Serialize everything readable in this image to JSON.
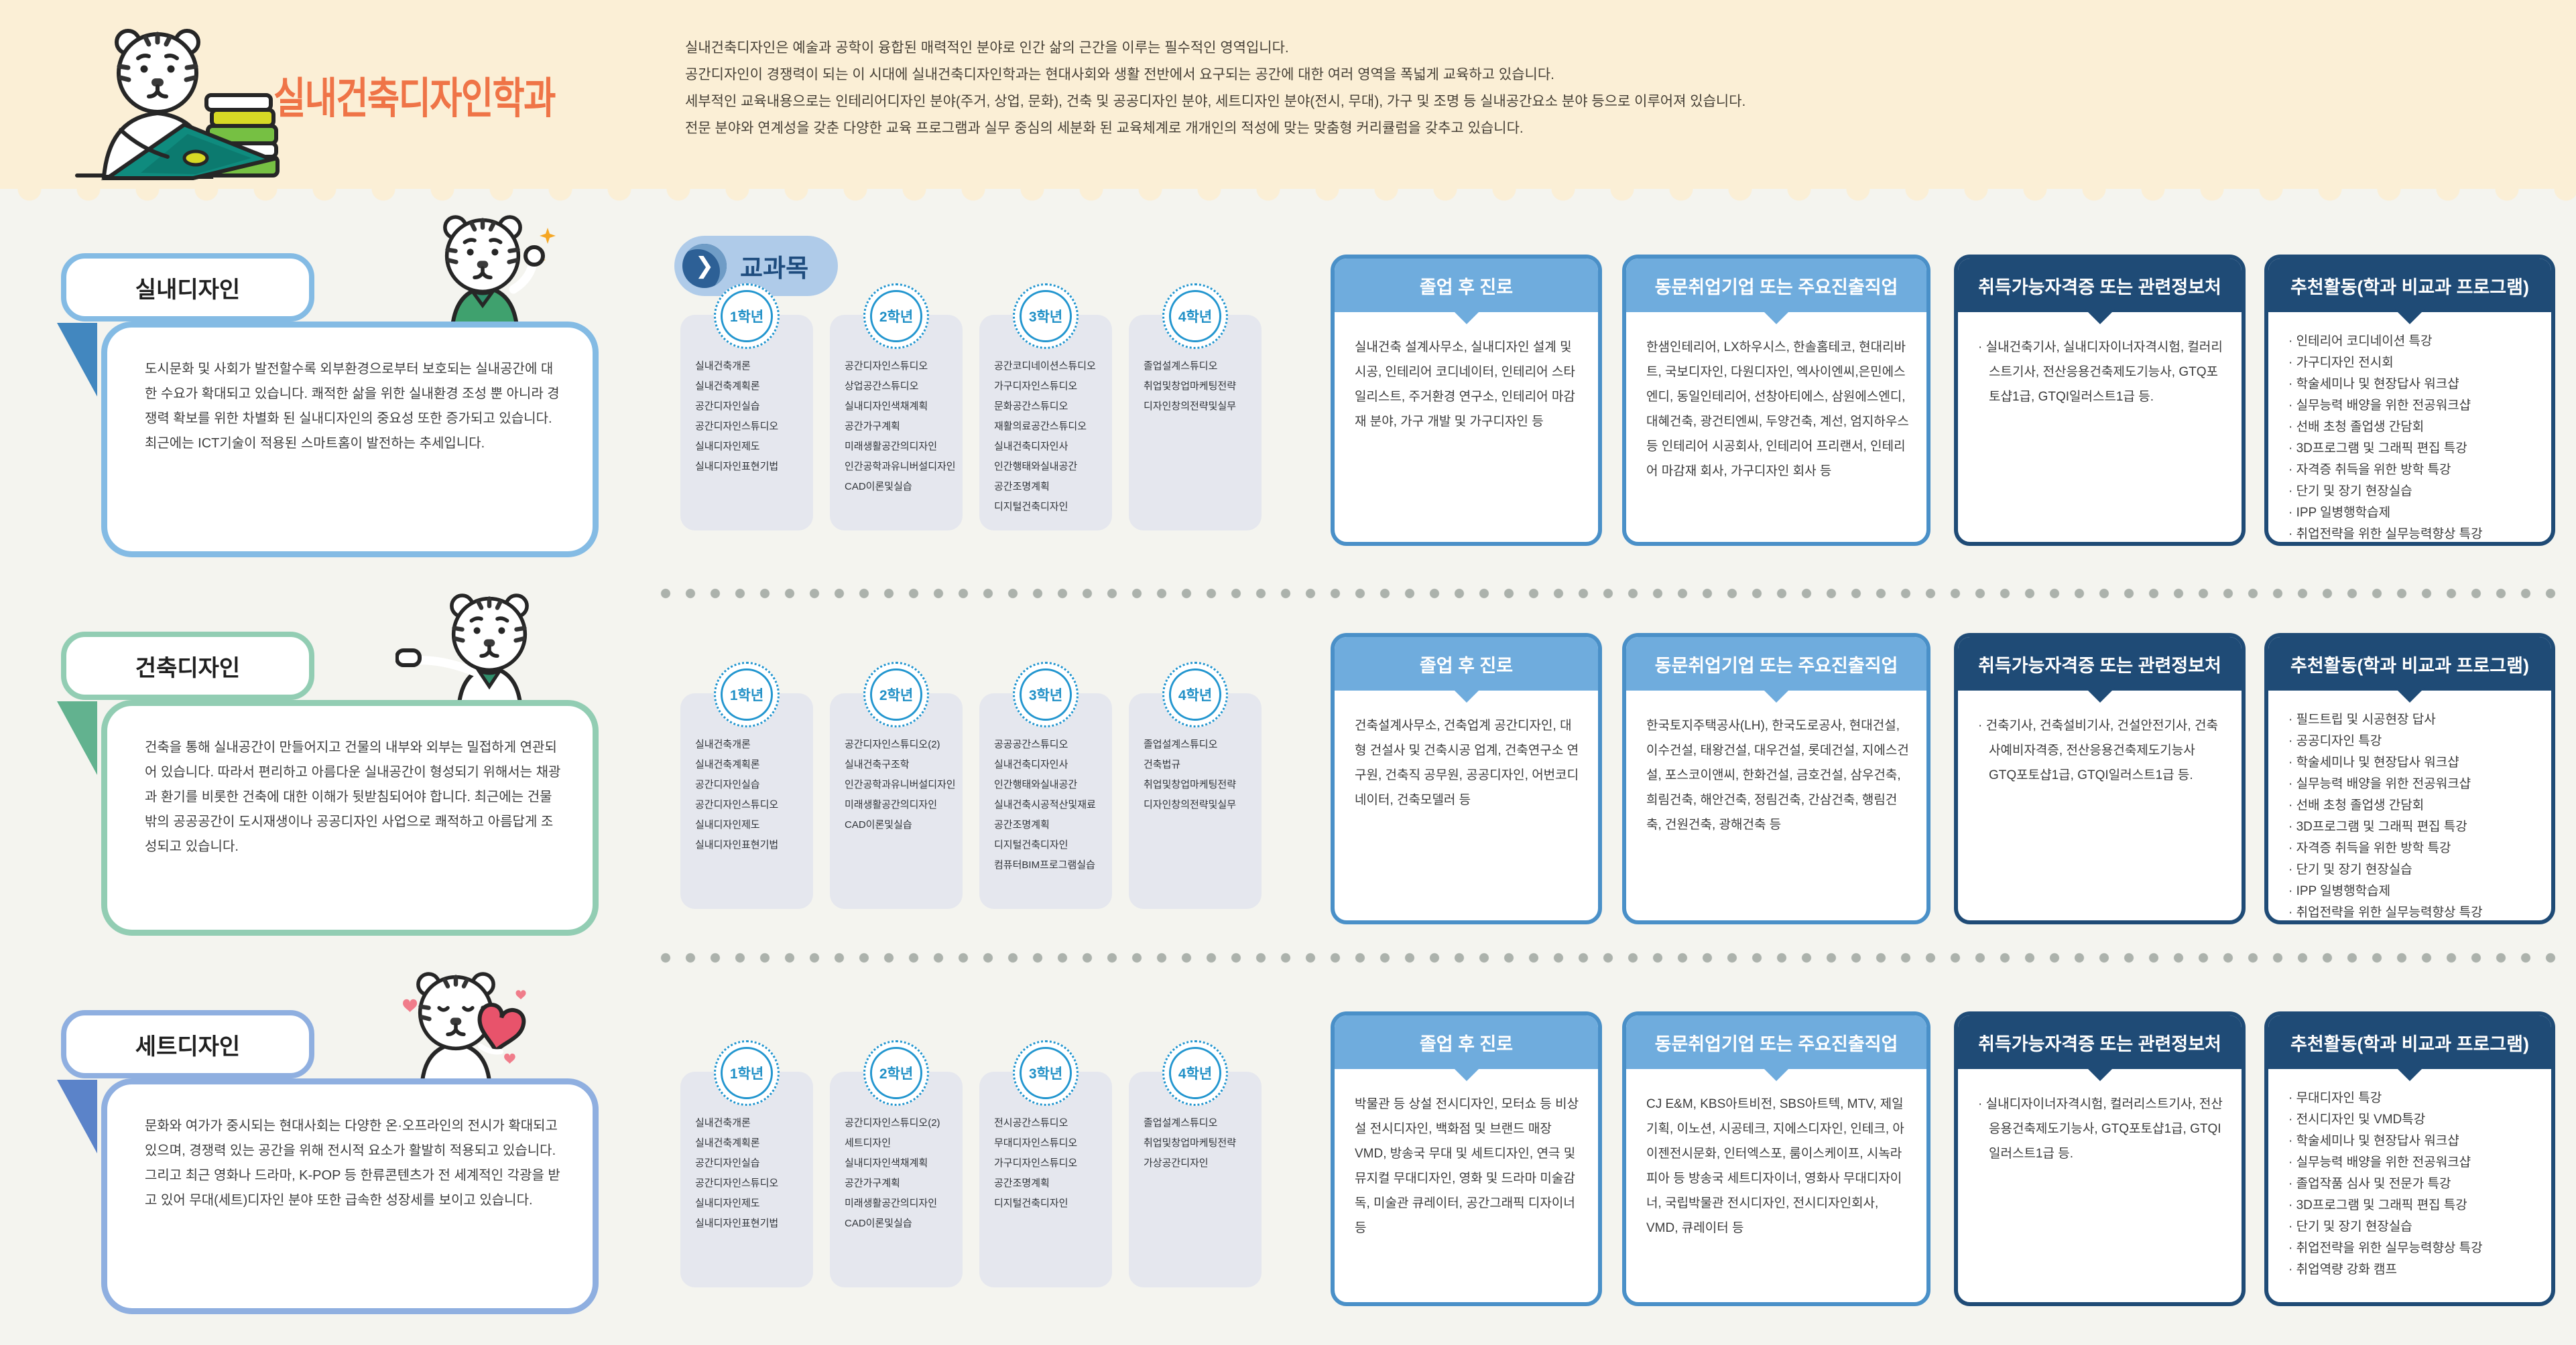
{
  "header": {
    "title": "실내건축디자인학과",
    "intro_lines": [
      "실내건축디자인은 예술과 공학이 융합된 매력적인 분야로 인간 삶의 근간을 이루는 필수적인 영역입니다.",
      "공간디자인이 경쟁력이 되는 이 시대에 실내건축디자인학과는 현대사회와 생활 전반에서 요구되는 공간에 대한 여러 영역을 폭넓게 교육하고 있습니다.",
      "세부적인 교육내용으로는 인테리어디자인 분야(주거, 상업, 문화), 건축 및 공공디자인 분야, 세트디자인 분야(전시, 무대), 가구 및 조명 등 실내공간요소 분야 등으로 이루어져 있습니다.",
      "전문 분야와 연계성을 갖춘 다양한 교육 프로그램과 실무 중심의 세분화 된 교육체계로 개개인의 적성에 맞는 맞춤형 커리큘럼을 갖추고 있습니다."
    ]
  },
  "curriculum_label": "교과목",
  "box_titles": {
    "career": "졸업 후 진로",
    "companies": "동문취업기업 또는 주요진출직업",
    "certificates": "취득가능자격증 또는 관련정보처",
    "activities": "추천활동(학과 비교과 프로그램)"
  },
  "colors": {
    "title_orange": "#EF7447",
    "band_cream": "#FBEFD6",
    "page_bg": "#F4F4EF",
    "box_blue_header": "#6FACDD",
    "box_blue_border": "#4A90C8",
    "box_navy": "#1F4B76",
    "year_circle_blue": "#2396CF",
    "row1_accent": "#84BBE4",
    "row2_accent": "#92CDB3",
    "row3_accent": "#8FAFE0"
  },
  "sections": [
    {
      "name": "실내디자인",
      "description": "도시문화 및 사회가 발전할수록 외부환경으로부터 보호되는 실내공간에 대한 수요가 확대되고 있습니다. 쾌적한 삶을 위한 실내환경 조성 뿐 아니라 경쟁력 확보를 위한 차별화 된 실내디자인의 중요성 또한 증가되고 있습니다. 최근에는 ICT기술이 적용된 스마트홈이 발전하는 추세입니다.",
      "years": [
        {
          "label": "1학년",
          "courses": [
            "실내건축개론",
            "실내건축계획론",
            "공간디자인실습",
            "공간디자인스튜디오",
            "실내디자인제도",
            "실내디자인표현기법"
          ]
        },
        {
          "label": "2학년",
          "courses": [
            "공간디자인스튜디오",
            "상업공간스튜디오",
            "실내디자인색채계획",
            "공간가구계획",
            "미래생활공간의디자인",
            "인간공학과유니버설디자인",
            "CAD이론및실습"
          ]
        },
        {
          "label": "3학년",
          "courses": [
            "공간코디네이션스튜디오",
            "가구디자인스튜디오",
            "문화공간스튜디오",
            "재활의료공간스튜디오",
            "실내건축디자인사",
            "인간행태와실내공간",
            "공간조명계획",
            "디지털건축디자인"
          ]
        },
        {
          "label": "4학년",
          "courses": [
            "졸업설계스튜디오",
            "취업및창업마케팅전략",
            "디자인창의전략및실무"
          ]
        }
      ],
      "career": "실내건축 설계사무소, 실내디자인 설계 및 시공, 인테리어 코디네이터, 인테리어 스타일리스트, 주거환경 연구소, 인테리어 마감재 분야, 가구 개발 및 가구디자인 등",
      "companies": "한샘인테리어, LX하우시스, 한솔홈테코, 현대리바트, 국보디자인, 다원디자인, 엑사이엔씨,은민에스엔디, 동일인테리어, 선창아티에스, 삼원에스엔디, 대혜건축, 광건티엔씨, 두양건축, 계선, 엄지하우스 등 인테리어 시공회사, 인테리어 프리랜서, 인테리어 마감재 회사, 가구디자인 회사 등",
      "certificates": [
        "실내건축기사, 실내디자이너자격시험, 컬러리스트기사, 전산응용건축제도기능사, GTQ포토샵1급, GTQI일러스트1급 등."
      ],
      "activities": [
        "인테리어 코디네이션 특강",
        "가구디자인 전시회",
        "학술세미나 및 현장답사 워크샵",
        "실무능력 배양을 위한 전공워크샵",
        "선배 초청 졸업생 간담회",
        "3D프로그램 및 그래픽 편집 특강",
        "자격증 취득을 위한 방학 특강",
        "단기 및 장기 현장실습",
        "IPP 일병행학습제",
        "취업전략을 위한 실무능력향상 특강"
      ]
    },
    {
      "name": "건축디자인",
      "description": "건축을 통해 실내공간이 만들어지고 건물의 내부와 외부는 밀접하게 연관되어 있습니다. 따라서 편리하고 아름다운 실내공간이 형성되기 위해서는 채광과 환기를 비롯한 건축에 대한 이해가 뒷받침되어야 합니다. 최근에는 건물 밖의 공공공간이 도시재생이나 공공디자인 사업으로 쾌적하고 아름답게 조성되고 있습니다.",
      "years": [
        {
          "label": "1학년",
          "courses": [
            "실내건축개론",
            "실내건축계획론",
            "공간디자인실습",
            "공간디자인스튜디오",
            "실내디자인제도",
            "실내디자인표현기법"
          ]
        },
        {
          "label": "2학년",
          "courses": [
            "공간디자인스튜디오(2)",
            "실내건축구조학",
            "인간공학과유니버설디자인",
            "미래생활공간의디자인",
            "CAD이론및실습"
          ]
        },
        {
          "label": "3학년",
          "courses": [
            "공공공간스튜디오",
            "실내건축디자인사",
            "인간행태와실내공간",
            "실내건축시공적산및재료",
            "공간조명계획",
            "디지털건축디자인",
            "컴퓨터BIM프로그램실습"
          ]
        },
        {
          "label": "4학년",
          "courses": [
            "졸업설계스튜디오",
            "건축법규",
            "취업및창업마케팅전략",
            "디자인창의전략및실무"
          ]
        }
      ],
      "career": "건축설계사무소, 건축업계 공간디자인, 대형 건설사 및 건축시공 업계, 건축연구소 연구원, 건축직 공무원, 공공디자인, 어번코디네이터, 건축모델러 등",
      "companies": "한국토지주택공사(LH), 한국도로공사, 현대건설, 이수건설, 태왕건설, 대우건설, 롯데건설, 지에스건설, 포스코이앤씨, 한화건설, 금호건설, 삼우건축, 희림건축, 해안건축, 정림건축, 간삼건축, 행림건축, 건원건축, 광해건축 등",
      "certificates": [
        "건축기사, 건축설비기사, 건설안전기사, 건축사예비자격증, 전산응용건축제도기능사 GTQ포토샵1급, GTQI일러스트1급 등."
      ],
      "activities": [
        "필드트립 및 시공현장 답사",
        "공공디자인 특강",
        "학술세미나 및 현장답사 워크샵",
        "실무능력 배양을 위한 전공워크샵",
        "선배 초청 졸업생 간담회",
        "3D프로그램 및 그래픽 편집 특강",
        "자격증 취득을 위한 방학 특강",
        "단기 및 장기 현장실습",
        "IPP 일병행학습제",
        "취업전략을 위한 실무능력향상 특강"
      ]
    },
    {
      "name": "세트디자인",
      "description": "문화와 여가가 중시되는 현대사회는 다양한 온·오프라인의 전시가 확대되고 있으며, 경쟁력 있는 공간을 위해 전시적 요소가 활발히 적용되고 있습니다. 그리고 최근 영화나 드라마, K-POP 등 한류콘텐츠가 전 세계적인 각광을 받고 있어 무대(세트)디자인 분야 또한 급속한 성장세를 보이고 있습니다.",
      "years": [
        {
          "label": "1학년",
          "courses": [
            "실내건축개론",
            "실내건축계획론",
            "공간디자인실습",
            "공간디자인스튜디오",
            "실내디자인제도",
            "실내디자인표현기법"
          ]
        },
        {
          "label": "2학년",
          "courses": [
            "공간디자인스튜디오(2)",
            "세트디자인",
            "실내디자인색채계획",
            "공간가구계획",
            "미래생활공간의디자인",
            "CAD이론및실습"
          ]
        },
        {
          "label": "3학년",
          "courses": [
            "전시공간스튜디오",
            "무대디자인스튜디오",
            "가구디자인스튜디오",
            "공간조명계획",
            "디지털건축디자인"
          ]
        },
        {
          "label": "4학년",
          "courses": [
            "졸업설계스튜디오",
            "취업및창업마케팅전략",
            "가상공간디자인"
          ]
        }
      ],
      "career": "박물관 등 상설 전시디자인, 모터쇼 등 비상설 전시디자인, 백화점 및 브랜드 매장 VMD, 방송국 무대 및 세트디자인, 연극 및 뮤지컬 무대디자인, 영화 및 드라마 미술감독, 미술관 큐레이터, 공간그래픽 디자이너 등",
      "companies": "CJ E&M, KBS아트비전, SBS아트텍, MTV, 제일기획, 이노션, 시공테크, 지에스디자인, 인테크, 아이젠전시문화, 인터엑스포, 룸이스케이프, 시녹라피아 등 방송국 세트디자이너, 영화사 무대디자이너, 국립박물관 전시디자인, 전시디자인회사, VMD, 큐레이터 등",
      "certificates": [
        "실내디자이너자격시험, 컬러리스트기사, 전산응용건축제도기능사, GTQ포토샵1급, GTQI일러스트1급 등."
      ],
      "activities": [
        "무대디자인 특강",
        "전시디자인 및 VMD특강",
        "학술세미나 및 현장답사 워크샵",
        "실무능력 배양을 위한 전공워크샵",
        "졸업작품 심사 및 전문가 특강",
        "3D프로그램 및 그래픽 편집 특강",
        "단기 및 장기 현장실습",
        "취업전략을 위한 실무능력향상 특강",
        "취업역량 강화 캠프"
      ]
    }
  ]
}
